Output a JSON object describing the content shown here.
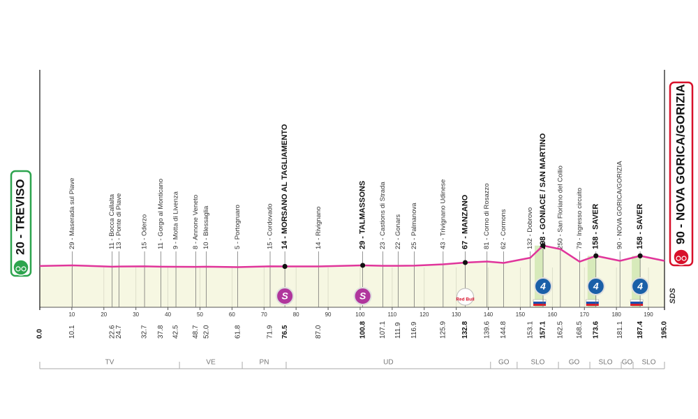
{
  "chart_data": {
    "type": "area",
    "x": [
      0,
      10.1,
      22.6,
      24.7,
      32.7,
      37.8,
      42.5,
      48.7,
      52,
      61.8,
      71.9,
      76.5,
      87,
      100.8,
      107.1,
      111.9,
      116.9,
      125.9,
      132.8,
      139.6,
      144.8,
      153.1,
      157.1,
      162.5,
      168.5,
      173.6,
      181.1,
      187.4,
      195
    ],
    "x_labels": [
      "0.0",
      "10.1",
      "22.6",
      "24.7",
      "32.7",
      "37.8",
      "42.5",
      "48.7",
      "52.0",
      "61.8",
      "71.9",
      "76.5",
      "87.0",
      "100.8",
      "107.1",
      "111.9",
      "116.9",
      "125.9",
      "132.8",
      "139.6",
      "144.8",
      "153.1",
      "157.1",
      "162.5",
      "168.5",
      "173.6",
      "181.1",
      "187.4",
      "195.0"
    ],
    "values": [
      20,
      29,
      11,
      13,
      15,
      11,
      9,
      8,
      10,
      5,
      15,
      14,
      14,
      29,
      23,
      22,
      25,
      43,
      67,
      81,
      62,
      132,
      298,
      250,
      79,
      158,
      90,
      158,
      90
    ],
    "value_labels": [
      "20 - TREVISO",
      "29 - Maserada sul Piave",
      "11 - Bocca Callalta",
      "13 - Ponte di Piave",
      "15 - Oderzo",
      "11 - Gorgo al Monticano",
      "9 - Motta di Livenza",
      "8 - Annone Veneto",
      "10 - Blessaglia",
      "5 - Portogruaro",
      "15 - Cordovado",
      "14 - MORSANO AL TAGLIAMENTO",
      "14 - Rivignano",
      "29 - TALMASSONS",
      "23 - Castions di Strada",
      "22 - Gonars",
      "25 - Palmanova",
      "43 - Trivignano Udinese",
      "67 - MANZANO",
      "81 - Corno di Rosazzo",
      "62 - Cormons",
      "132 - Dobrovo",
      "298 - GONIACE / SAN MARTINO",
      "250 - San Floriano del Collio",
      "79 - Ingresso circuito",
      "158 - SAVER",
      "90 - NOVA GORICA/GORIZIA",
      "158 - SAVER",
      "90 - NOVA GORICA/GORIZIA"
    ],
    "bold": [
      true,
      false,
      false,
      false,
      false,
      false,
      false,
      false,
      false,
      false,
      false,
      true,
      false,
      true,
      false,
      false,
      false,
      false,
      true,
      false,
      false,
      false,
      true,
      false,
      false,
      true,
      false,
      true,
      true
    ],
    "color": "#e0359b",
    "xlim": [
      0,
      195
    ],
    "ylim": [
      -543,
      2695
    ],
    "xticks": [
      10,
      20,
      30,
      40,
      50,
      60,
      70,
      80,
      90,
      100,
      110,
      120,
      130,
      140,
      150,
      160,
      170,
      180,
      190
    ],
    "grid": true,
    "markers": [
      {
        "x": 76.5,
        "symbol": "S",
        "color": "#b0369c"
      },
      {
        "x": 100.8,
        "symbol": "S",
        "color": "#b0369c"
      },
      {
        "x": 132.8,
        "symbol": "Red Bull",
        "color": "#d8102a"
      },
      {
        "x": 157.1,
        "symbol": "4",
        "color": "#1a5fa8"
      },
      {
        "x": 173.6,
        "symbol": "4",
        "color": "#1a5fa8"
      },
      {
        "x": 187.4,
        "symbol": "4",
        "color": "#1a5fa8"
      }
    ],
    "regions": [
      {
        "name": "TV",
        "from": 0,
        "to": 43.6
      },
      {
        "name": "VE",
        "from": 43.6,
        "to": 63.2
      },
      {
        "name": "PN",
        "from": 63.2,
        "to": 76.9
      },
      {
        "name": "UD",
        "from": 76.9,
        "to": 140.7
      },
      {
        "name": "GO",
        "from": 140.7,
        "to": 149
      },
      {
        "name": "SLO",
        "from": 149,
        "to": 161.9
      },
      {
        "name": "GO",
        "from": 161.9,
        "to": 171.7
      },
      {
        "name": "SLO",
        "from": 171.7,
        "to": 181.5
      },
      {
        "name": "GO",
        "from": 181.5,
        "to": 185.2
      },
      {
        "name": "SLO",
        "from": 185.2,
        "to": 195
      }
    ],
    "brand": "SDS"
  }
}
